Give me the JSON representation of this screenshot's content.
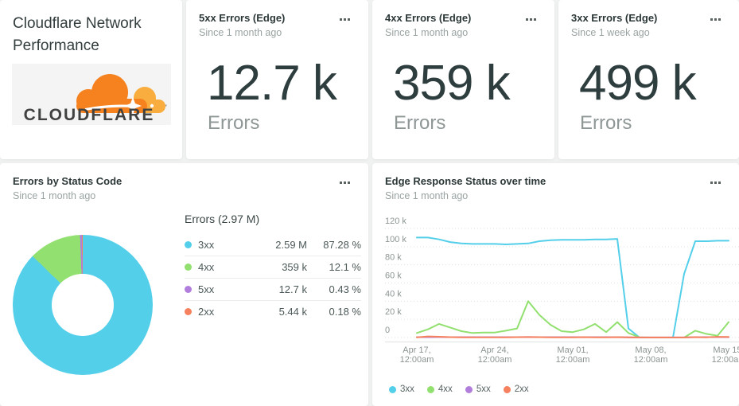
{
  "palette": {
    "blue": "#54CFEA",
    "green": "#92E070",
    "purple": "#B27EDC",
    "orange": "#F5815E",
    "dark_text": "#2E3D3E",
    "gray_text": "#9AA3A3",
    "logo_orange": "#F6821F",
    "logo_light_orange": "#FAAD3F",
    "logo_text_color": "#404242"
  },
  "title_card": {
    "title": "Cloudflare Network Performance",
    "logo_wordmark": "CLOUDFLARE"
  },
  "menu_icon": "ellipsis",
  "metric_cards": [
    {
      "title": "5xx Errors (Edge)",
      "subtitle": "Since 1 month ago",
      "value": "12.7 k",
      "label": "Errors"
    },
    {
      "title": "4xx Errors (Edge)",
      "subtitle": "Since 1 month ago",
      "value": "359 k",
      "label": "Errors"
    },
    {
      "title": "3xx Errors (Edge)",
      "subtitle": "Since 1 week ago",
      "value": "499 k",
      "label": "Errors"
    }
  ],
  "donut_card": {
    "title": "Errors by Status Code",
    "subtitle": "Since 1 month ago",
    "table": {
      "header": "Errors (2.97 M)",
      "rows": [
        {
          "label": "3xx",
          "value": "2.59 M",
          "pct": "87.28 %",
          "color": "#54CFEA"
        },
        {
          "label": "4xx",
          "value": "359 k",
          "pct": "12.1 %",
          "color": "#92E070"
        },
        {
          "label": "5xx",
          "value": "12.7 k",
          "pct": "0.43 %",
          "color": "#B27EDC"
        },
        {
          "label": "2xx",
          "value": "5.44 k",
          "pct": "0.18 %",
          "color": "#F5815E"
        }
      ]
    }
  },
  "line_card": {
    "title": "Edge Response Status over time",
    "subtitle": "Since 1 month ago"
  },
  "chart_data": [
    {
      "type": "pie",
      "title": "Errors by Status Code",
      "total_label": "Errors (2.97 M)",
      "labels": [
        "3xx",
        "4xx",
        "5xx",
        "2xx"
      ],
      "values_pct": [
        87.28,
        12.1,
        0.43,
        0.18
      ],
      "counts": [
        "2.59 M",
        "359 k",
        "12.7 k",
        "5.44 k"
      ],
      "colors": [
        "#54CFEA",
        "#92E070",
        "#B27EDC",
        "#F5815E"
      ],
      "donut": true
    },
    {
      "type": "line",
      "title": "Edge Response Status over time",
      "ylim": [
        0,
        120000
      ],
      "yticks": [
        "0",
        "20 k",
        "40 k",
        "60 k",
        "80 k",
        "100 k",
        "120 k"
      ],
      "xticks": [
        [
          "Apr 17,",
          "12:00am"
        ],
        [
          "Apr 24,",
          "12:00am"
        ],
        [
          "May 01,",
          "12:00am"
        ],
        [
          "May 08,",
          "12:00am"
        ],
        [
          "May 15,",
          "12:00am"
        ]
      ],
      "grid": "dotted",
      "legend_position": "bottom",
      "series": [
        {
          "name": "3xx",
          "color": "#54CFEA",
          "values": [
            110000,
            110000,
            108000,
            105000,
            103500,
            103000,
            103000,
            103000,
            102500,
            103000,
            103500,
            106000,
            107000,
            107500,
            107500,
            107500,
            108000,
            108000,
            108500,
            10000,
            0,
            0,
            0,
            0,
            70000,
            106000,
            106000,
            106500,
            106500
          ]
        },
        {
          "name": "4xx",
          "color": "#92E070",
          "values": [
            5000,
            9000,
            15000,
            11000,
            7000,
            5000,
            5500,
            5500,
            7500,
            10000,
            40000,
            25000,
            14000,
            7000,
            6000,
            9000,
            15000,
            6000,
            17000,
            5000,
            300,
            0,
            0,
            0,
            0,
            7500,
            4000,
            2000,
            17000
          ]
        },
        {
          "name": "5xx",
          "color": "#B27EDC",
          "values": [
            400,
            450,
            500,
            450,
            400,
            400,
            450,
            400,
            400,
            450,
            500,
            450,
            400,
            400,
            450,
            400,
            400,
            450,
            400,
            300,
            100,
            100,
            100,
            100,
            100,
            400,
            450,
            400,
            450
          ]
        },
        {
          "name": "2xx",
          "color": "#F5815E",
          "values": [
            300,
            1200,
            900,
            400,
            300,
            300,
            300,
            300,
            300,
            400,
            500,
            400,
            300,
            300,
            300,
            400,
            300,
            300,
            400,
            200,
            100,
            100,
            100,
            100,
            100,
            400,
            300,
            800,
            600
          ]
        }
      ]
    }
  ]
}
